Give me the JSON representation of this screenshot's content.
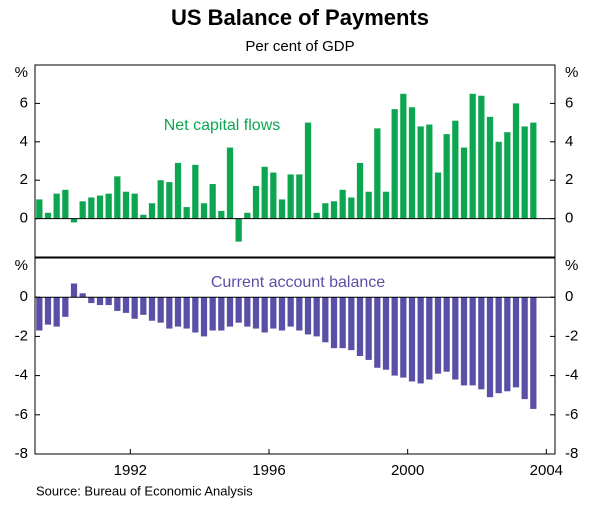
{
  "title": "US Balance of Payments",
  "subtitle": "Per cent of GDP",
  "source": "Source: Bureau of Economic Analysis",
  "chart_data": [
    {
      "type": "bar",
      "label": "Net capital flows",
      "color": "#0ca550",
      "x": [
        1989.875,
        1990.125,
        1990.375,
        1990.625,
        1990.875,
        1991.125,
        1991.375,
        1991.625,
        1991.875,
        1992.125,
        1992.375,
        1992.625,
        1992.875,
        1993.125,
        1993.375,
        1993.625,
        1993.875,
        1994.125,
        1994.375,
        1994.625,
        1994.875,
        1995.125,
        1995.375,
        1995.625,
        1995.875,
        1996.125,
        1996.375,
        1996.625,
        1996.875,
        1997.125,
        1997.375,
        1997.625,
        1997.875,
        1998.125,
        1998.375,
        1998.625,
        1998.875,
        1999.125,
        1999.375,
        1999.625,
        1999.875,
        2000.125,
        2000.375,
        2000.625,
        2000.875,
        2001.125,
        2001.375,
        2001.625,
        2001.875,
        2002.125,
        2002.375,
        2002.625,
        2002.875,
        2003.125,
        2003.375,
        2003.625,
        2003.875,
        2004.125
      ],
      "values": [
        1.0,
        0.3,
        1.3,
        1.5,
        -0.2,
        0.9,
        1.1,
        1.2,
        1.3,
        2.2,
        1.4,
        1.3,
        0.2,
        0.8,
        2.0,
        1.9,
        2.9,
        0.6,
        2.8,
        0.8,
        1.8,
        0.4,
        3.7,
        -1.2,
        0.3,
        1.7,
        2.7,
        2.4,
        1.0,
        2.3,
        2.3,
        5.0,
        0.3,
        0.8,
        0.9,
        1.5,
        1.1,
        2.9,
        1.4,
        4.7,
        1.4,
        5.7,
        6.5,
        5.8,
        4.8,
        4.9,
        2.4,
        4.4,
        5.1,
        3.7,
        6.5,
        6.4,
        5.3,
        4.0,
        4.5,
        6.0,
        4.8,
        5.0
      ],
      "xlim": [
        1989.75,
        2004.75
      ],
      "ylim": [
        -2,
        8
      ],
      "yticks": [
        0,
        2,
        4,
        6,
        {
          "value": 8,
          "label": "%"
        }
      ]
    },
    {
      "type": "bar",
      "label": "Current account balance",
      "color": "#5a4fa6",
      "x": [
        1989.875,
        1990.125,
        1990.375,
        1990.625,
        1990.875,
        1991.125,
        1991.375,
        1991.625,
        1991.875,
        1992.125,
        1992.375,
        1992.625,
        1992.875,
        1993.125,
        1993.375,
        1993.625,
        1993.875,
        1994.125,
        1994.375,
        1994.625,
        1994.875,
        1995.125,
        1995.375,
        1995.625,
        1995.875,
        1996.125,
        1996.375,
        1996.625,
        1996.875,
        1997.125,
        1997.375,
        1997.625,
        1997.875,
        1998.125,
        1998.375,
        1998.625,
        1998.875,
        1999.125,
        1999.375,
        1999.625,
        1999.875,
        2000.125,
        2000.375,
        2000.625,
        2000.875,
        2001.125,
        2001.375,
        2001.625,
        2001.875,
        2002.125,
        2002.375,
        2002.625,
        2002.875,
        2003.125,
        2003.375,
        2003.625,
        2003.875,
        2004.125
      ],
      "values": [
        -1.7,
        -1.4,
        -1.5,
        -1.0,
        0.7,
        0.2,
        -0.3,
        -0.4,
        -0.4,
        -0.7,
        -0.8,
        -1.1,
        -0.9,
        -1.2,
        -1.3,
        -1.6,
        -1.5,
        -1.6,
        -1.8,
        -2.0,
        -1.7,
        -1.7,
        -1.5,
        -1.3,
        -1.5,
        -1.6,
        -1.8,
        -1.6,
        -1.7,
        -1.5,
        -1.7,
        -1.9,
        -2.0,
        -2.3,
        -2.6,
        -2.6,
        -2.7,
        -3.0,
        -3.2,
        -3.6,
        -3.7,
        -4.0,
        -4.1,
        -4.3,
        -4.4,
        -4.2,
        -3.9,
        -3.8,
        -4.2,
        -4.5,
        -4.5,
        -4.7,
        -5.1,
        -4.9,
        -4.8,
        -4.6,
        -5.2,
        -5.7
      ],
      "xlim": [
        1989.75,
        2004.75
      ],
      "ylim": [
        -8,
        2
      ],
      "yticks": [
        {
          "value": 2,
          "label": "%"
        },
        0,
        -2,
        -4,
        -6,
        -8
      ],
      "xticks": [
        {
          "value": 1992.5,
          "label": "1992"
        },
        {
          "value": 1996.5,
          "label": "1996"
        },
        {
          "value": 2000.5,
          "label": "2000"
        },
        {
          "value": 2004.5,
          "label": "2004"
        }
      ]
    }
  ]
}
